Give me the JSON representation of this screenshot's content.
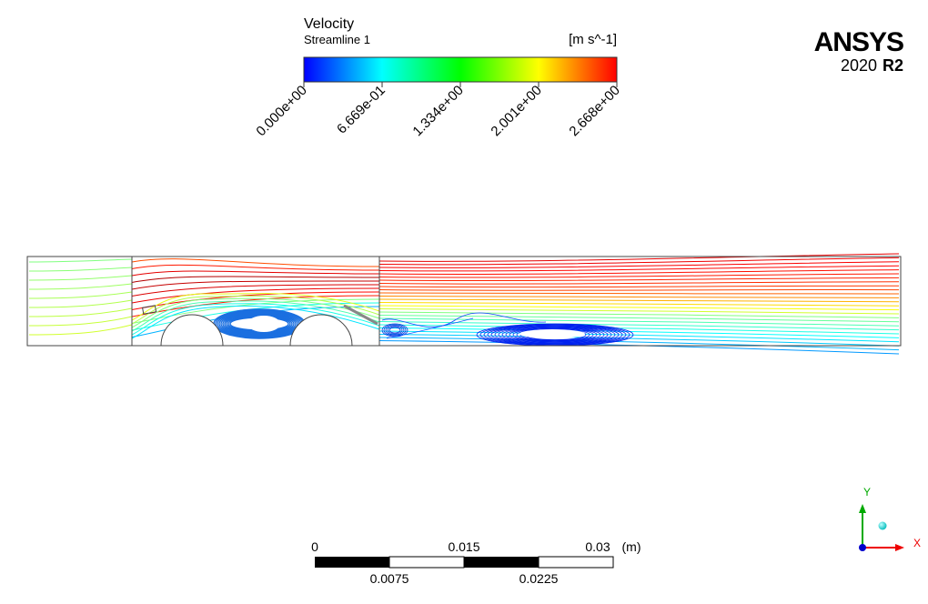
{
  "legend": {
    "title": "Velocity",
    "subtitle": "Streamline 1",
    "unit": "[m s^-1]",
    "ticks": [
      "0.000e+00",
      "6.669e-01",
      "1.334e+00",
      "2.001e+00",
      "2.668e+00"
    ]
  },
  "logo": {
    "brand": "ANSYS",
    "year": "2020",
    "release": "R2"
  },
  "scale_bar": {
    "top_labels": [
      "0",
      "0.015",
      "0.03"
    ],
    "unit": "(m)",
    "bottom_labels": [
      "0.0075",
      "0.0225"
    ]
  },
  "triad": {
    "y": "Y",
    "x": "X"
  }
}
